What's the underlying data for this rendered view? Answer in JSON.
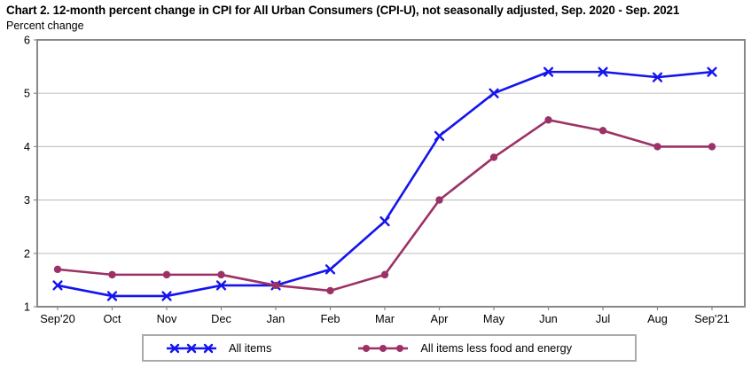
{
  "title": "Chart 2. 12-month percent change in CPI for All Urban Consumers (CPI-U), not seasonally adjusted, Sep. 2020 - Sep. 2021",
  "axis_note": "Percent change",
  "chart_data": {
    "type": "line",
    "categories": [
      "Sep'20",
      "Oct",
      "Nov",
      "Dec",
      "Jan",
      "Feb",
      "Mar",
      "Apr",
      "May",
      "Jun",
      "Jul",
      "Aug",
      "Sep'21"
    ],
    "series": [
      {
        "name": "All items",
        "marker": "x",
        "color": "#1414ee",
        "values": [
          1.4,
          1.2,
          1.2,
          1.4,
          1.4,
          1.7,
          2.6,
          4.2,
          5.0,
          5.4,
          5.4,
          5.3,
          5.4
        ]
      },
      {
        "name": "All items less food and energy",
        "marker": "circle",
        "color": "#9c3166",
        "values": [
          1.7,
          1.6,
          1.6,
          1.6,
          1.4,
          1.3,
          1.6,
          3.0,
          3.8,
          4.5,
          4.3,
          4.0,
          4.0
        ]
      }
    ],
    "ylabel": "Percent change",
    "ylim": [
      1,
      6
    ],
    "yticks": [
      1,
      2,
      3,
      4,
      5,
      6
    ],
    "grid": true,
    "legend_position": "bottom",
    "colors": {
      "frame": "#888888",
      "gridline": "#c6c6c6",
      "tick": "#888888",
      "text": "#000000"
    }
  }
}
